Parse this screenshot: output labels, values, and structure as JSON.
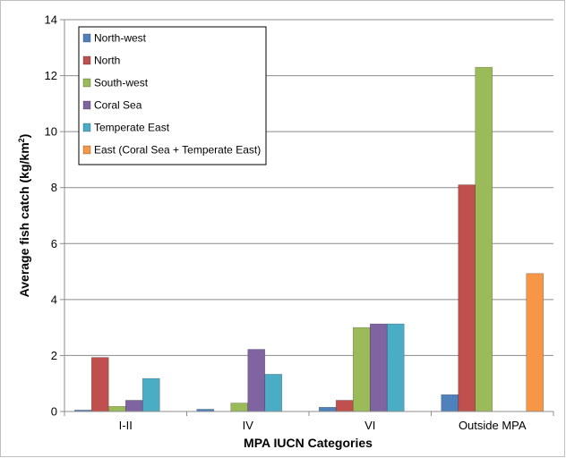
{
  "chart_data": {
    "type": "bar",
    "title": "",
    "xlabel": "MPA IUCN Categories",
    "ylabel_main": "Average fish catch (kg/km",
    "ylabel_sup": "2",
    "ylabel_close": ")",
    "ylim": [
      0,
      14
    ],
    "yticks": [
      0,
      2,
      4,
      6,
      8,
      10,
      12,
      14
    ],
    "grid": true,
    "legend_placement": "top-left",
    "categories": [
      "I-II",
      "IV",
      "VI",
      "Outside MPA"
    ],
    "series": [
      {
        "name": "North-west",
        "color": "#4f81bd",
        "values": [
          0.05,
          0.08,
          0.15,
          0.6
        ]
      },
      {
        "name": "North",
        "color": "#c0504d",
        "values": [
          1.93,
          0,
          0.4,
          8.1
        ]
      },
      {
        "name": "South-west",
        "color": "#9bbb59",
        "values": [
          0.18,
          0.3,
          3.0,
          12.3
        ]
      },
      {
        "name": "Coral Sea",
        "color": "#8064a2",
        "values": [
          0.4,
          2.22,
          3.13,
          0
        ]
      },
      {
        "name": "Temperate East",
        "color": "#4bacc6",
        "values": [
          1.18,
          1.33,
          3.13,
          0
        ]
      },
      {
        "name": "East (Coral Sea + Temperate East)",
        "color": "#f79646",
        "values": [
          0,
          0,
          0,
          4.93
        ]
      }
    ]
  }
}
